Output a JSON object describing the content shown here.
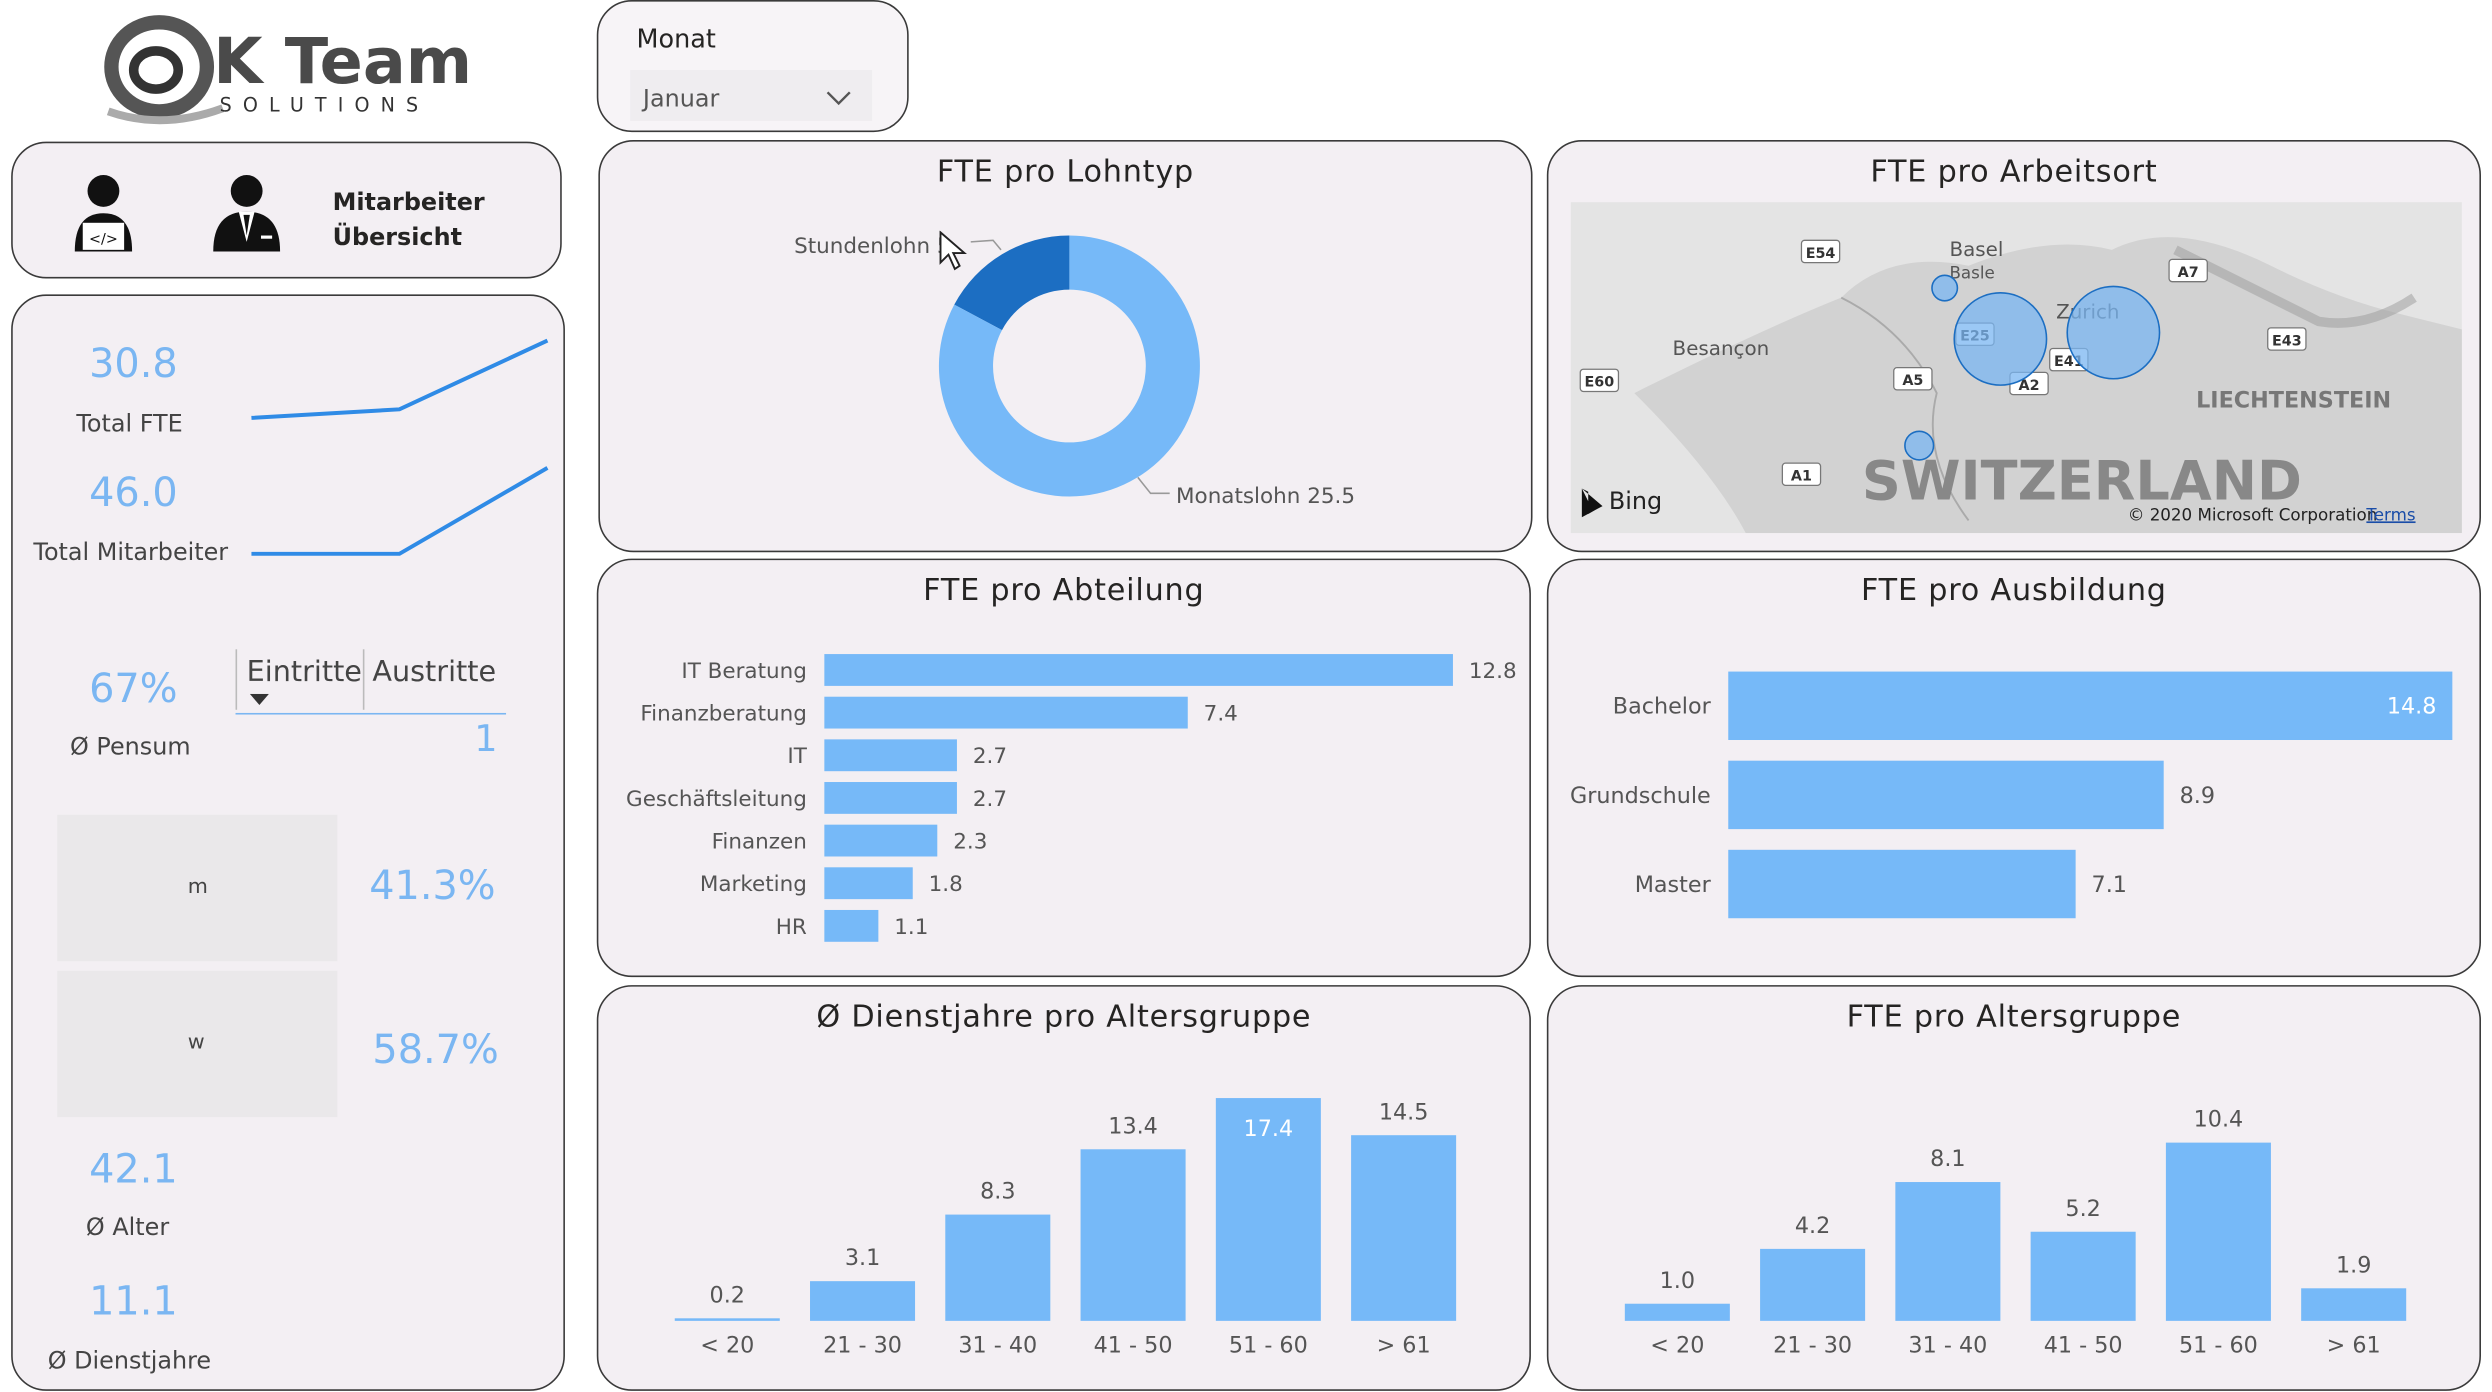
{
  "logo": {
    "brand": "K Team",
    "sub": "SOLUTIONS"
  },
  "filter": {
    "label": "Monat",
    "value": "Januar"
  },
  "nav": {
    "label_line1": "Mitarbeiter",
    "label_line2": "Übersicht"
  },
  "kpis": {
    "total_fte_value": "30.8",
    "total_fte_label": "Total FTE",
    "total_ma_value": "46.0",
    "total_ma_label": "Total Mitarbeiter",
    "pensum_value": "67%",
    "pensum_label": "Ø Pensum",
    "tab_eintritte": "Eintritte",
    "tab_austritte": "Austritte",
    "tab_value": "1",
    "gender_m": "m",
    "gender_m_value": "41.3%",
    "gender_w": "w",
    "gender_w_value": "58.7%",
    "alter_value": "42.1",
    "alter_label": "Ø Alter",
    "dienst_value": "11.1",
    "dienst_label": "Ø Dienstjahre"
  },
  "charts": {
    "lohntyp_title": "FTE pro Lohntyp",
    "arbeitsort_title": "FTE pro Arbeitsort",
    "abteilung_title": "FTE pro Abteilung",
    "ausbildung_title": "FTE pro Ausbildung",
    "dienstjahre_title": "Ø Dienstjahre pro Altersgruppe",
    "altersgruppe_title": "FTE pro Altersgruppe"
  },
  "map": {
    "labels": [
      "Basel",
      "Basle",
      "Zurich",
      "Besançon",
      "LIECHTENSTEIN",
      "SWITZERLAND"
    ],
    "roads": [
      "E54",
      "A7",
      "E25",
      "E43",
      "E41",
      "E60",
      "A5",
      "A2",
      "A1"
    ],
    "bing": "Bing",
    "copyright": "© 2020 Microsoft Corporation",
    "terms": "Terms"
  },
  "colors": {
    "bar": "#76b9f8",
    "dark": "#1c6ec2",
    "line": "#2f8be6",
    "kpi": "#7ab6f2"
  },
  "chart_data": [
    {
      "type": "line",
      "title": "Total FTE",
      "x": [
        1,
        2,
        3
      ],
      "values": [
        0.1,
        0.2,
        1.0
      ]
    },
    {
      "type": "line",
      "title": "Total Mitarbeiter",
      "x": [
        1,
        2,
        3
      ],
      "values": [
        0.0,
        0.0,
        1.0
      ]
    },
    {
      "type": "pie",
      "title": "FTE pro Lohntyp",
      "categories": [
        "Stundenlohn",
        "Monatslohn"
      ],
      "values": [
        5.3,
        25.5
      ],
      "labels": [
        "Stundenlohn 5.3",
        "Monatslohn 25.5"
      ],
      "label_visible": [
        "Stundenlohn 5",
        "Monatslohn 25.5"
      ]
    },
    {
      "type": "bar",
      "title": "FTE pro Abteilung",
      "categories": [
        "IT Beratung",
        "Finanzberatung",
        "IT",
        "Geschäftsleitung",
        "Finanzen",
        "Marketing",
        "HR"
      ],
      "values": [
        12.8,
        7.4,
        2.7,
        2.7,
        2.3,
        1.8,
        1.1
      ]
    },
    {
      "type": "bar",
      "title": "FTE pro Ausbildung",
      "categories": [
        "Bachelor",
        "Grundschule",
        "Master"
      ],
      "values": [
        14.8,
        8.9,
        7.1
      ]
    },
    {
      "type": "bar",
      "title": "Ø Dienstjahre pro Altersgruppe",
      "categories": [
        "< 20",
        "21 - 30",
        "31 - 40",
        "41 - 50",
        "51 - 60",
        "> 61"
      ],
      "values": [
        0.2,
        3.1,
        8.3,
        13.4,
        17.4,
        14.5
      ]
    },
    {
      "type": "bar",
      "title": "FTE pro Altersgruppe",
      "categories": [
        "< 20",
        "21 - 30",
        "31 - 40",
        "41 - 50",
        "51 - 60",
        "> 61"
      ],
      "values": [
        1.0,
        4.2,
        8.1,
        5.2,
        10.4,
        1.9
      ]
    }
  ]
}
